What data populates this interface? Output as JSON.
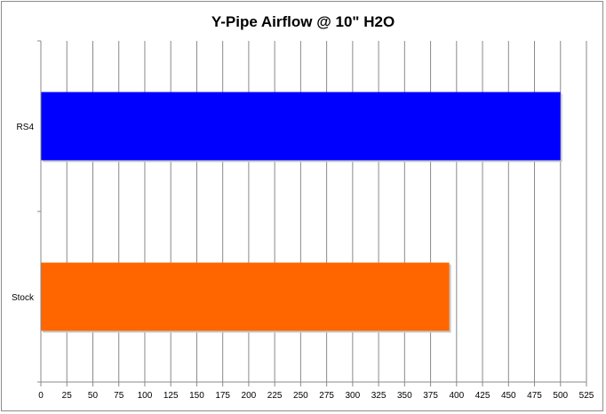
{
  "chart_data": {
    "type": "bar",
    "orientation": "horizontal",
    "title": "Y-Pipe Airflow @ 10\" H2O",
    "xlabel": "",
    "ylabel": "",
    "categories": [
      "RS4",
      "Stock"
    ],
    "values": [
      500,
      393
    ],
    "colors": [
      "#0000ff",
      "#ff6600"
    ],
    "xlim": [
      0,
      525
    ],
    "xticks": [
      0,
      25,
      50,
      75,
      100,
      125,
      150,
      175,
      200,
      225,
      250,
      275,
      300,
      325,
      350,
      375,
      400,
      425,
      450,
      475,
      500,
      525
    ],
    "grid": true,
    "legend": "none"
  }
}
